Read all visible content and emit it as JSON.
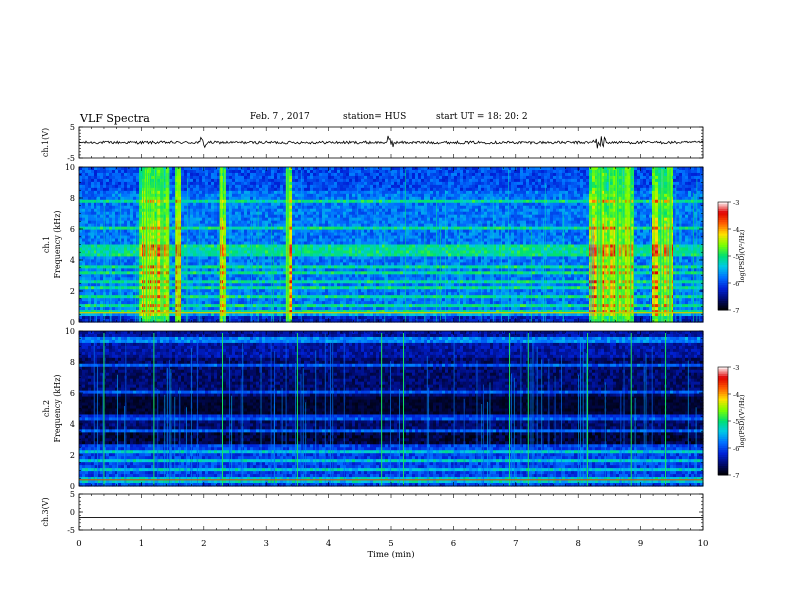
{
  "header": {
    "title": "VLF Spectra",
    "date": "Feb. 7 , 2017",
    "station": "station= HUS",
    "start": "start UT =  18: 20: 2"
  },
  "chart_data": [
    {
      "type": "line",
      "panel": "ch1-waveform",
      "ylabel": "ch.1(V)",
      "ylim": [
        -5,
        5
      ],
      "yticks": [
        -5,
        5
      ],
      "xlim": [
        0,
        10
      ],
      "baseline": 0,
      "bursts_min": [
        2.0,
        5.0,
        8.3,
        8.4
      ]
    },
    {
      "type": "heatmap",
      "panel": "ch1-spectrogram",
      "ylabel_ch": "ch.1",
      "ylabel": "Frequency (kHz)",
      "ylim": [
        0,
        10
      ],
      "yticks": [
        0,
        2,
        4,
        6,
        8,
        10
      ],
      "xlim": [
        0,
        10
      ],
      "horizontal_lines_khz": [
        0.6,
        1.0,
        1.6,
        2.2,
        2.6,
        3.2,
        3.6,
        4.4,
        4.8,
        6.0,
        7.8
      ],
      "broadband_periods_min": [
        [
          0.95,
          1.45
        ],
        [
          1.55,
          1.65
        ],
        [
          2.25,
          2.35
        ],
        [
          3.3,
          3.4
        ],
        [
          8.15,
          8.9
        ],
        [
          9.2,
          9.5
        ]
      ],
      "colorbar": {
        "label": "log(PSD)(V²/Hz)",
        "ticks": [
          -3,
          -4,
          -5,
          -6,
          -7
        ],
        "range": [
          -7,
          -3
        ]
      }
    },
    {
      "type": "heatmap",
      "panel": "ch2-spectrogram",
      "ylabel_ch": "ch.2",
      "ylabel": "Frequency (kHz)",
      "ylim": [
        0,
        10
      ],
      "yticks": [
        0,
        2,
        4,
        6,
        8,
        10
      ],
      "xlim": [
        0,
        10
      ],
      "horizontal_lines_khz": [
        0.4,
        1.0,
        1.6,
        2.2,
        3.6,
        4.4,
        6.0,
        7.8,
        9.4
      ],
      "impulses_min": [
        0.4,
        1.2,
        2.3,
        3.5,
        4.85,
        5.2,
        6.9,
        7.2,
        8.15,
        8.85,
        9.4
      ],
      "colorbar": {
        "label": "log(PSD)(V²/Hz)",
        "ticks": [
          -3,
          -4,
          -5,
          -6,
          -7
        ],
        "range": [
          -7,
          -3
        ]
      }
    },
    {
      "type": "line",
      "panel": "ch3-waveform",
      "ylabel": "ch.3(V)",
      "ylim": [
        -5,
        5
      ],
      "yticks": [
        -5,
        0,
        5
      ],
      "xlim": [
        0,
        10
      ],
      "baseline": -1.5
    },
    {
      "type": "axis",
      "panel": "time-axis",
      "xlabel": "Time (min)",
      "xticks": [
        0,
        1,
        2,
        3,
        4,
        5,
        6,
        7,
        8,
        9,
        10
      ]
    }
  ],
  "colors": {
    "cmap": [
      "#000000",
      "#000a6e",
      "#0022d8",
      "#0070ff",
      "#00c8e8",
      "#00e070",
      "#7cff00",
      "#ffe000",
      "#ff6000",
      "#e00000",
      "#ffffff"
    ],
    "line": "#000000"
  }
}
